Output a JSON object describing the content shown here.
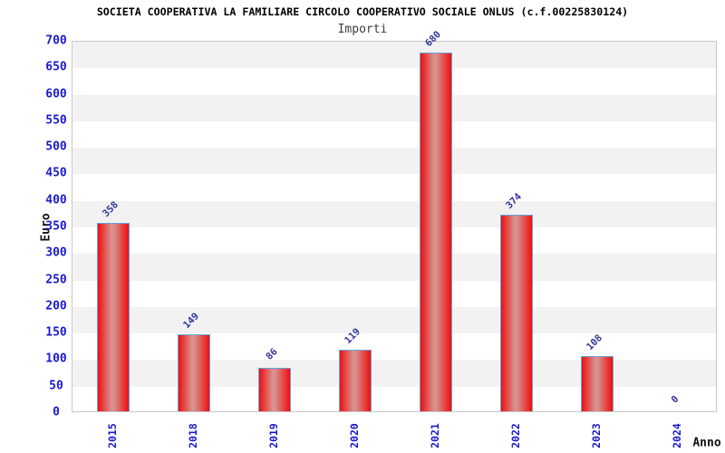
{
  "chart_data": {
    "type": "bar",
    "title": "SOCIETA COOPERATIVA LA FAMILIARE CIRCOLO COOPERATIVO SOCIALE ONLUS (c.f.00225830124)",
    "subtitle": "Importi",
    "xlabel": "Anno",
    "ylabel": "Euro",
    "categories": [
      "2015",
      "2018",
      "2019",
      "2020",
      "2021",
      "2022",
      "2023",
      "2024"
    ],
    "values": [
      358,
      149,
      86,
      119,
      680,
      374,
      108,
      0
    ],
    "value_labels": [
      "358",
      "149",
      "86",
      "119",
      "680",
      "374",
      "108",
      "0"
    ],
    "ylim": [
      0,
      700
    ],
    "ytick_step": 50,
    "yticks": [
      0,
      50,
      100,
      150,
      200,
      250,
      300,
      350,
      400,
      450,
      500,
      550,
      600,
      650,
      700
    ],
    "grid": "alternating-horizontal-gray-bands",
    "legend": "none",
    "bar_label_rotation_deg": -45,
    "x_tick_rotation_deg": -90,
    "colors": {
      "title_text": "#000000",
      "subtitle_text": "#3c3c3c",
      "axis_tick_text": "#1a1acc",
      "value_label": "#34349a",
      "band_gray": "#f2f2f2",
      "plot_border": "#c9c9c9",
      "bar_edge_red": "#ee0f0f",
      "bar_center": "#d79390",
      "bar_border": "#66a3dd"
    }
  }
}
